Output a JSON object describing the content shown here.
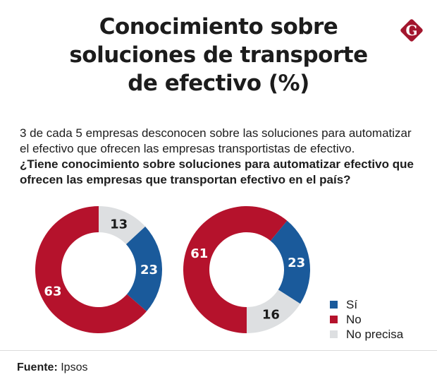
{
  "header": {
    "title_lines": [
      "Conocimiento sobre",
      "soluciones de transporte",
      "de efectivo  (%)"
    ],
    "logo": {
      "icon": "g-diamond-logo-icon",
      "letter": "G",
      "color": "#a3162e"
    }
  },
  "intro": {
    "lines": [
      "3 de cada 5 empresas desconocen sobre las soluciones para automatizar",
      "el efectivo que ofrecen las empresas transportistas de efectivo."
    ],
    "question_lines": [
      "¿Tiene conocimiento sobre soluciones para automatizar efectivo que",
      "ofrecen las empresas que transportan efectivo en el país?"
    ]
  },
  "colors": {
    "si": "#1a5a9b",
    "no": "#b5122c",
    "no_precisa": "#dddfe1"
  },
  "chart_data": [
    {
      "type": "pie",
      "variant": "donut",
      "title": "",
      "slices": [
        {
          "label": "No precisa",
          "value": 13,
          "color": "#dddfe1",
          "text_color": "#1b1b1b"
        },
        {
          "label": "Sí",
          "value": 23,
          "color": "#1a5a9b",
          "text_color": "#ffffff"
        },
        {
          "label": "No",
          "value": 63,
          "color": "#b5122c",
          "text_color": "#ffffff"
        }
      ],
      "start": "top",
      "direction": "clockwise"
    },
    {
      "type": "pie",
      "variant": "donut",
      "title": "",
      "slices": [
        {
          "label": "No",
          "value": 61,
          "color": "#b5122c",
          "text_color": "#ffffff"
        },
        {
          "label": "Sí",
          "value": 23,
          "color": "#1a5a9b",
          "text_color": "#ffffff"
        },
        {
          "label": "No precisa",
          "value": 16,
          "color": "#dddfe1",
          "text_color": "#1b1b1b"
        }
      ],
      "start": "bottom",
      "direction": "clockwise"
    }
  ],
  "legend": {
    "placement": "bottom-right",
    "items": [
      {
        "label": "Sí",
        "color": "#1a5a9b"
      },
      {
        "label": "No",
        "color": "#b5122c"
      },
      {
        "label": "No precisa",
        "color": "#dddfe1"
      }
    ]
  },
  "footer": {
    "source_label": "Fuente:",
    "source_value": " Ipsos"
  }
}
